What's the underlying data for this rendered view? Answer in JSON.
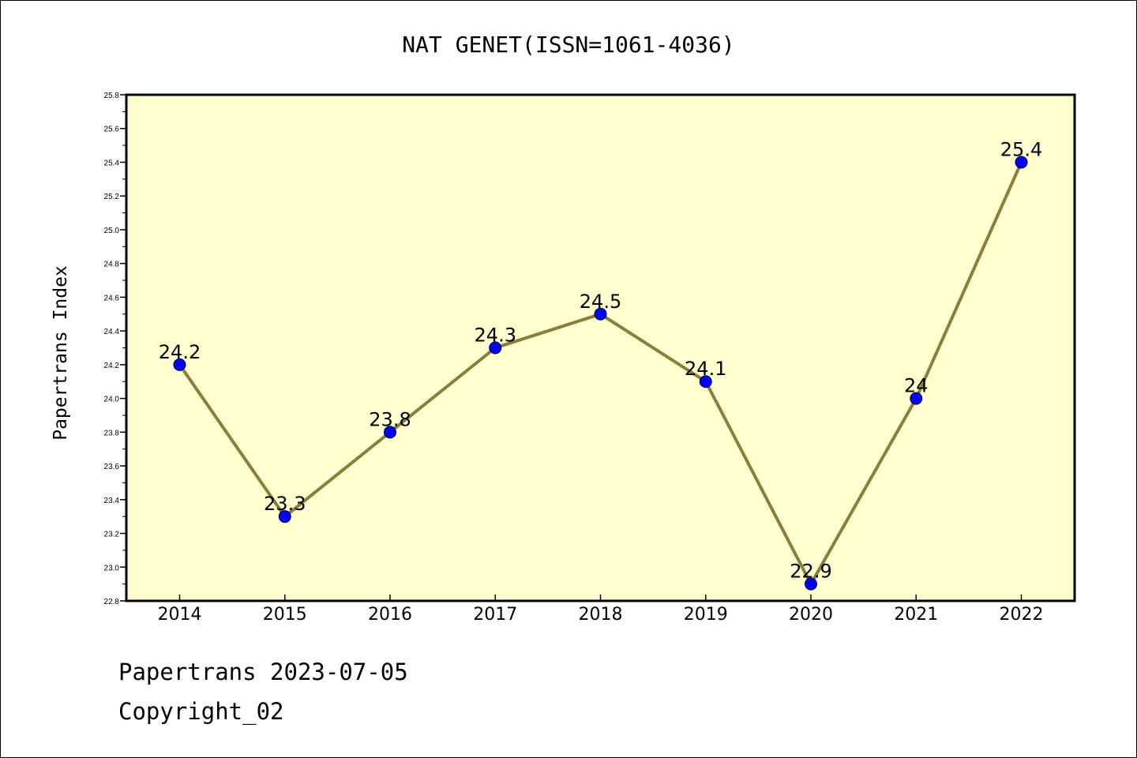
{
  "chart_data": {
    "type": "line",
    "title": "NAT GENET(ISSN=1061-4036)",
    "xlabel": "",
    "ylabel": "Papertrans Index",
    "categories": [
      "2014",
      "2015",
      "2016",
      "2017",
      "2018",
      "2019",
      "2020",
      "2021",
      "2022"
    ],
    "series": [
      {
        "values": [
          24.2,
          23.3,
          23.8,
          24.3,
          24.5,
          24.1,
          22.9,
          24.0,
          25.4
        ],
        "labels": [
          "24.2",
          "23.3",
          "23.8",
          "24.3",
          "24.5",
          "24.1",
          "22.9",
          "24",
          "25.4"
        ]
      }
    ],
    "ylim": [
      22.8,
      25.8
    ],
    "yticks": [
      "22.8",
      "23.0",
      "23.2",
      "23.4",
      "23.6",
      "23.8",
      "24.0",
      "24.2",
      "24.4",
      "24.6",
      "24.8",
      "25.0",
      "25.2",
      "25.4",
      "25.6",
      "25.8"
    ],
    "grid": false,
    "colors": {
      "plot_background": "#ffffd0",
      "line": "#8b7d3a",
      "marker": "#0000ff"
    }
  },
  "footer": {
    "line1": "Papertrans 2023-07-05",
    "line2": "Copyright_02"
  }
}
